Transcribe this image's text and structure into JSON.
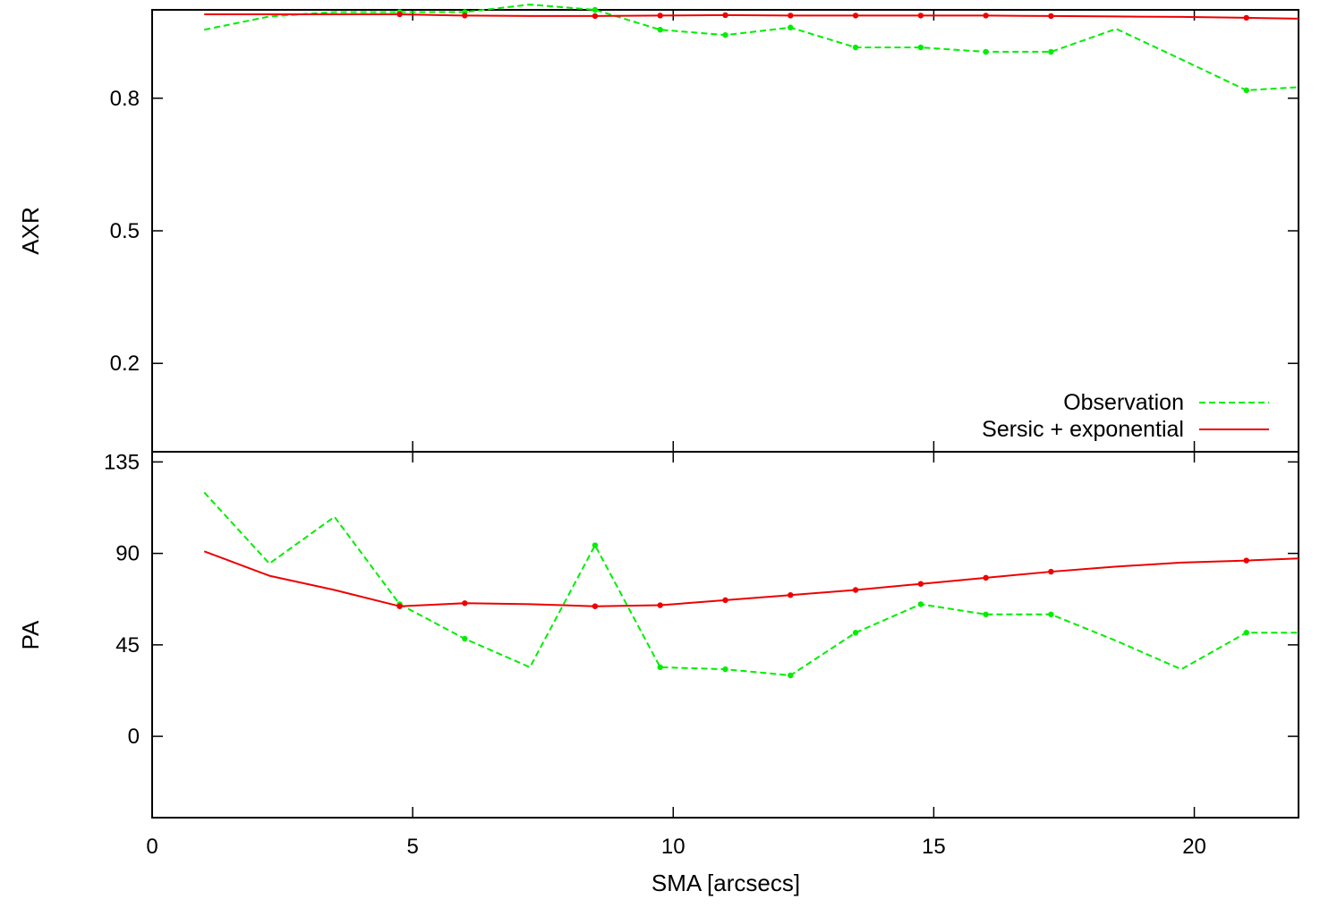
{
  "chart_data": [
    {
      "type": "line",
      "ylabel": "AXR",
      "ylim": [
        0.0,
        1.0
      ],
      "yticks": [
        0.2,
        0.5,
        0.8
      ],
      "xlim": [
        0,
        22
      ],
      "legend_position": "bottom-right",
      "series": [
        {
          "name": "Observation",
          "color": "#00ee00",
          "style": "dashed",
          "x": [
            1.0,
            2.25,
            3.5,
            4.75,
            6.0,
            7.25,
            8.5,
            9.75,
            11.0,
            12.25,
            13.5,
            14.75,
            16.0,
            17.25,
            18.5,
            19.75,
            21.0,
            22.0
          ],
          "y": [
            0.955,
            0.985,
            0.995,
            0.995,
            0.995,
            1.012,
            1.0,
            0.955,
            0.943,
            0.96,
            0.915,
            0.915,
            0.905,
            0.905,
            0.957,
            0.888,
            0.818,
            0.825
          ]
        },
        {
          "name": "Sersic + exponential",
          "color": "#ee0000",
          "style": "solid",
          "x": [
            1.0,
            2.25,
            3.5,
            4.75,
            6.0,
            7.25,
            8.5,
            9.75,
            11.0,
            12.25,
            13.5,
            14.75,
            16.0,
            17.25,
            18.5,
            19.75,
            21.0,
            22.0
          ],
          "y": [
            0.99,
            0.99,
            0.99,
            0.99,
            0.987,
            0.986,
            0.986,
            0.987,
            0.988,
            0.987,
            0.987,
            0.987,
            0.987,
            0.986,
            0.985,
            0.984,
            0.982,
            0.98
          ]
        }
      ]
    },
    {
      "type": "line",
      "ylabel": "PA",
      "xlabel": "SMA [arcsecs]",
      "ylim": [
        -40,
        140
      ],
      "yticks": [
        0,
        45,
        90,
        135
      ],
      "xlim": [
        0,
        22
      ],
      "xticks": [
        0,
        5,
        10,
        15,
        20
      ],
      "series": [
        {
          "name": "Observation",
          "color": "#00ee00",
          "style": "dashed",
          "x": [
            1.0,
            2.25,
            3.5,
            4.75,
            6.0,
            7.25,
            8.5,
            9.75,
            11.0,
            12.25,
            13.5,
            14.75,
            16.0,
            17.25,
            18.5,
            19.75,
            21.0,
            22.0
          ],
          "y": [
            120,
            85,
            108,
            65,
            48,
            34,
            94,
            34,
            33,
            30,
            51,
            65,
            60,
            60,
            47,
            33,
            51,
            51
          ]
        },
        {
          "name": "Sersic + exponential",
          "color": "#ee0000",
          "style": "solid",
          "x": [
            1.0,
            2.25,
            3.5,
            4.75,
            6.0,
            7.25,
            8.5,
            9.75,
            11.0,
            12.25,
            13.5,
            14.75,
            16.0,
            17.25,
            18.5,
            19.75,
            21.0,
            22.0
          ],
          "y": [
            91,
            79,
            72,
            64,
            65.5,
            65,
            64,
            64.5,
            67,
            69.5,
            72,
            75,
            78,
            81,
            83.5,
            85.5,
            86.5,
            87.5
          ]
        }
      ]
    }
  ]
}
